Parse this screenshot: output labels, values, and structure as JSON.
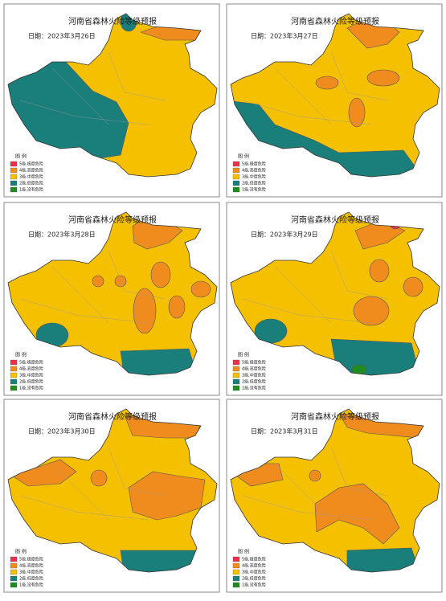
{
  "panels": [
    {
      "title": "河南省森林火险等级预报",
      "date": "日期：2023年3月26日"
    },
    {
      "title": "河南省森林火险等级预报",
      "date": "日期：2023年3月27日"
    },
    {
      "title": "河南省森林火险等级预报",
      "date": "日期：2023年3月28日"
    },
    {
      "title": "河南省森林火险等级预报",
      "date": "日期：2023年3月29日"
    },
    {
      "title": "河南省森林火险等级预报",
      "date": "日期：2023年3月30日"
    },
    {
      "title": "河南省森林火险等级预报",
      "date": "日期：2023年3月31日"
    }
  ],
  "legend": {
    "title": "图  例",
    "items": [
      "5级,极度危险",
      "4级,高度危险",
      "3级,中度危险",
      "2级,低度危险",
      "1级,没有危险"
    ]
  }
}
